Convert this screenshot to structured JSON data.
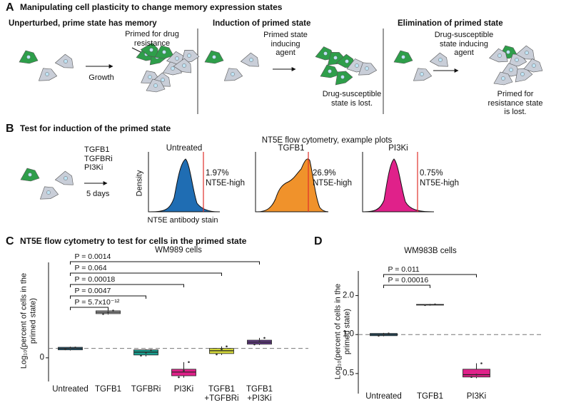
{
  "panel_a": {
    "letter": "A",
    "title": "Manipulating cell plasticity to change memory expression states",
    "sections": [
      {
        "title": "Unperturbed, prime state has memory",
        "labels": [
          "Primed for drug\nresistance",
          "Growth"
        ]
      },
      {
        "title": "Induction of primed state",
        "labels": [
          "Primed state\ninducing\nagent",
          "Drug-susceptible\nstate is lost."
        ]
      },
      {
        "title": "Elimination of primed state",
        "labels": [
          "Drug-susceptible\nstate inducing\nagent",
          "Primed for\nresistance state is lost."
        ]
      }
    ]
  },
  "panel_b": {
    "letter": "B",
    "title": "Test for induction of the primed state",
    "treatments": "TGFB1\nTGFBRi\nPI3Ki",
    "duration": "5 days",
    "plots_title": "NT5E flow cytometry, example plots",
    "y_label": "Density",
    "x_label": "NT5E antibody stain",
    "plots": [
      {
        "name": "Untreated",
        "percent": "1.97%",
        "gate": "NT5E-high",
        "color": "#1f6db3"
      },
      {
        "name": "TGFB1",
        "percent": "26.9%",
        "gate": "NT5E-high",
        "color": "#f0922b"
      },
      {
        "name": "PI3Ki",
        "percent": "0.75%",
        "gate": "NT5E-high",
        "color": "#e0218a"
      }
    ]
  },
  "chart_data": [
    {
      "type": "box",
      "letter": "C",
      "title": "NT5E flow cytometry to test for cells in the primed state",
      "subtitle": "WM989 cells",
      "y_label": "Log₁₀(percent of cells in the\nprimed state)",
      "categories": [
        "Untreated",
        "TGFB1",
        "TGFBRi",
        "PI3Ki",
        "TGFB1\n+TGFBRi",
        "TGFB1\n+PI3Ki"
      ],
      "boxes": [
        {
          "q1": 0.28,
          "median": 0.33,
          "q3": 0.37,
          "whisker_low": 0.26,
          "whisker_high": 0.39,
          "points": [
            0.3,
            0.34,
            0.36
          ],
          "color": "#2f6f8f"
        },
        {
          "q1": 1.55,
          "median": 1.6,
          "q3": 1.65,
          "whisker_low": 1.52,
          "whisker_high": 1.68,
          "points": [
            1.54,
            1.6,
            1.66
          ],
          "color": "#b0b0b0"
        },
        {
          "q1": 0.1,
          "median": 0.2,
          "q3": 0.28,
          "whisker_low": 0.05,
          "whisker_high": 0.3,
          "points": [
            0.08,
            0.18,
            0.27
          ],
          "color": "#1a9e8f"
        },
        {
          "q1": -0.63,
          "median": -0.5,
          "q3": -0.4,
          "whisker_low": -0.7,
          "whisker_high": -0.15,
          "points": [
            -0.68,
            -0.45,
            -0.15
          ],
          "color": "#e0218a"
        },
        {
          "q1": 0.15,
          "median": 0.25,
          "q3": 0.33,
          "whisker_low": 0.1,
          "whisker_high": 0.4,
          "points": [
            0.12,
            0.3,
            0.4
          ],
          "color": "#d4d83a"
        },
        {
          "q1": 0.48,
          "median": 0.55,
          "q3": 0.62,
          "whisker_low": 0.45,
          "whisker_high": 0.7,
          "points": [
            0.47,
            0.56,
            0.7
          ],
          "color": "#6b3f8f"
        }
      ],
      "reference_line": 0.33,
      "comparisons": [
        {
          "label": "P = 5.7x10⁻¹²",
          "groups": [
            "Untreated",
            "TGFB1"
          ]
        },
        {
          "label": "P = 0.0047",
          "groups": [
            "Untreated",
            "TGFBRi"
          ]
        },
        {
          "label": "P = 0.00018",
          "groups": [
            "Untreated",
            "PI3Ki"
          ]
        },
        {
          "label": "P = 0.064",
          "groups": [
            "Untreated",
            "TGFB1\n+TGFBRi"
          ]
        },
        {
          "label": "P = 0.0014",
          "groups": [
            "Untreated",
            "TGFB1\n+PI3Ki"
          ]
        }
      ],
      "ylim": [
        -0.83,
        3.35
      ],
      "yticks": [
        0
      ],
      "log_scale": false
    },
    {
      "type": "box",
      "letter": "D",
      "title": "WM983B cells",
      "y_label": "Log₁₀(percent of cells in the\nprimed state)",
      "categories": [
        "Untreated",
        "TGFB1",
        "PI3Ki"
      ],
      "boxes": [
        {
          "q1": 0.98,
          "median": 1.0,
          "q3": 1.02,
          "whisker_low": 0.97,
          "whisker_high": 1.03,
          "points": [
            0.98,
            1.0,
            1.02
          ],
          "color": "#2f6f8f"
        },
        {
          "q1": 1.69,
          "median": 1.7,
          "q3": 1.71,
          "whisker_low": 1.68,
          "whisker_high": 1.72,
          "points": [
            1.69,
            1.7,
            1.71
          ],
          "color": "#b0b0b0"
        },
        {
          "q1": 0.47,
          "median": 0.49,
          "q3": 0.54,
          "whisker_low": 0.46,
          "whisker_high": 0.6,
          "points": [
            0.47,
            0.49,
            0.6
          ],
          "color": "#e0218a"
        }
      ],
      "reference_line": 1,
      "comparisons": [
        {
          "label": "P = 0.00016",
          "groups": [
            "Untreated",
            "TGFB1"
          ]
        },
        {
          "label": "P = 0.011",
          "groups": [
            "Untreated",
            "PI3Ki"
          ]
        }
      ],
      "ylim": [
        0.35,
        3.1
      ],
      "yticks": [
        0.5,
        {
          "value": 1,
          "label": "1.0"
        },
        {
          "value": 2,
          "label": "2.0"
        }
      ],
      "log_scale": true
    }
  ]
}
